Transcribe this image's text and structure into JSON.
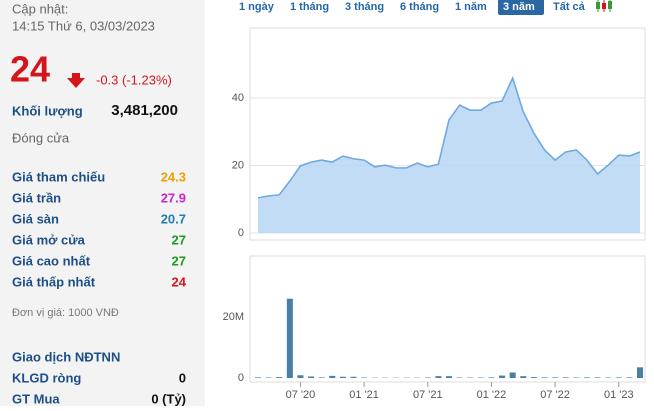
{
  "summary": {
    "update_label": "Cập nhật:",
    "update_time": "14:15 Thứ 6, 03/03/2023",
    "price": 24,
    "change": "-0.3 (-1.23%)",
    "volume_label": "Khối lượng",
    "volume": "3,481,200",
    "status": "Đóng cửa"
  },
  "stats": [
    {
      "label": "Giá tham chiếu",
      "value": 24.3,
      "color": "#f0a000"
    },
    {
      "label": "Giá trần",
      "value": 27.9,
      "color": "#d023d0"
    },
    {
      "label": "Giá sàn",
      "value": 20.7,
      "color": "#1f7fae"
    },
    {
      "label": "Giá mở cửa",
      "value": 27,
      "color": "#1e9a1e"
    },
    {
      "label": "Giá cao nhất",
      "value": 27,
      "color": "#1e9a1e"
    },
    {
      "label": "Giá thấp nhất",
      "value": 24,
      "color": "#d4161c"
    }
  ],
  "unit_note": "Đơn vị giá: 1000 VNĐ",
  "foreign": {
    "title": "Giao dịch NĐTNN",
    "rows": [
      {
        "label": "KLGD ròng",
        "value": 0
      },
      {
        "label": "GT Mua",
        "value": "0 (Tỷ)"
      }
    ]
  },
  "tabs": {
    "items": [
      "1 ngày",
      "1 tháng",
      "3 tháng",
      "6 tháng",
      "1 năm",
      "3 năm",
      "Tất cả"
    ],
    "active": 5
  },
  "chart_data": [
    {
      "type": "area",
      "color": "#6fa9e0",
      "ylim": [
        0,
        60
      ],
      "yticks": [
        0,
        20,
        40
      ],
      "grid": true,
      "values": [
        10.4,
        11,
        11.3,
        15.4,
        19.9,
        21,
        21.6,
        21,
        22.8,
        22,
        21.6,
        19.6,
        20.1,
        19.3,
        19.3,
        20.7,
        19.6,
        20.4,
        33.5,
        37.9,
        36.4,
        36.4,
        38.5,
        39.1,
        45.9,
        35.9,
        29.6,
        24.6,
        21.6,
        24,
        24.6,
        21.6,
        17.5,
        20.1,
        23.1,
        22.8,
        24
      ]
    },
    {
      "type": "bar",
      "color": "#4a7fa5",
      "ylim": [
        0,
        40000000
      ],
      "yticks": [
        0,
        {
          "value": 20000000,
          "label": "20M"
        }
      ],
      "categories": [
        null,
        null,
        null,
        null,
        "07 '20",
        null,
        null,
        null,
        null,
        null,
        "01 '21",
        null,
        null,
        null,
        null,
        null,
        "07 '21",
        null,
        null,
        null,
        null,
        null,
        "01 '22",
        null,
        null,
        null,
        null,
        null,
        "07 '22",
        null,
        null,
        null,
        null,
        null,
        "01 '23",
        null,
        null
      ],
      "values": [
        200000,
        150000,
        300000,
        26000000,
        900000,
        500000,
        200000,
        700000,
        400000,
        400000,
        150000,
        100000,
        100000,
        100000,
        100000,
        100000,
        150000,
        600000,
        600000,
        150000,
        150000,
        150000,
        200000,
        800000,
        1800000,
        600000,
        300000,
        200000,
        200000,
        200000,
        150000,
        200000,
        200000,
        150000,
        200000,
        200000,
        3500000
      ]
    }
  ]
}
